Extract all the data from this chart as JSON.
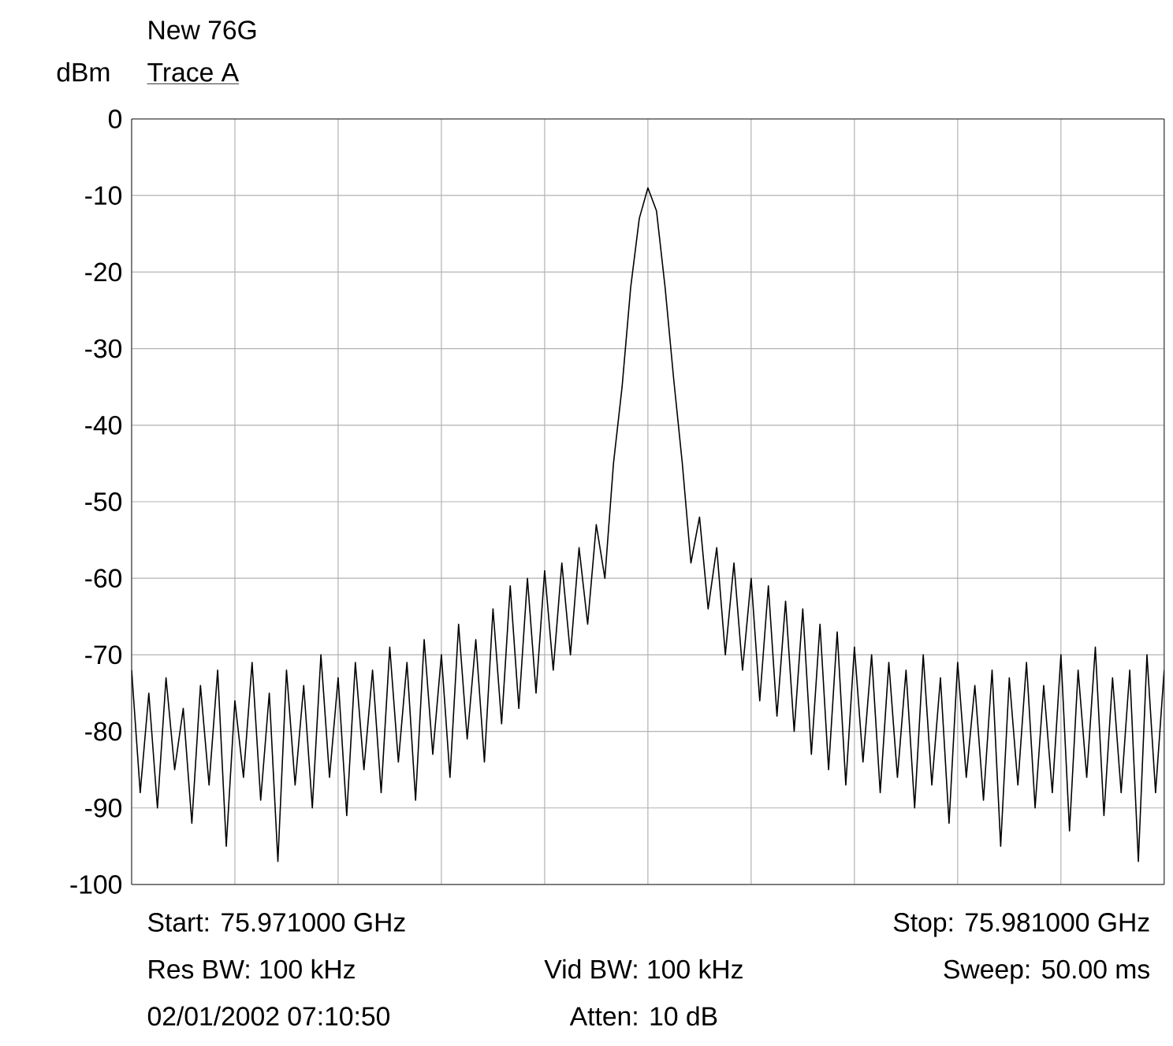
{
  "chart_data": {
    "type": "line",
    "title": "New 76G",
    "subtitle": "Trace A",
    "ylabel": "dBm",
    "categories": [
      null,
      null,
      null,
      null,
      null,
      null,
      null,
      null,
      null,
      null,
      null,
      null,
      null,
      null,
      null,
      null,
      null,
      null,
      null,
      null,
      null,
      null,
      null,
      null,
      null,
      null,
      null,
      null,
      null,
      null,
      null,
      null,
      null,
      null,
      null,
      null,
      null,
      null,
      null,
      null,
      null,
      null,
      null,
      null,
      null,
      null,
      null,
      null,
      null,
      null,
      null,
      null,
      null,
      null,
      null,
      null,
      null,
      null,
      null,
      null,
      null,
      null,
      null,
      null,
      null,
      null,
      null,
      null,
      null,
      null,
      null,
      null,
      null,
      null,
      null,
      null,
      null,
      null,
      null,
      null,
      null,
      null,
      null,
      null,
      null,
      null,
      null,
      null,
      null,
      null,
      null,
      null,
      null,
      null,
      null,
      null,
      null,
      null,
      null,
      null,
      null,
      null,
      null,
      null,
      null,
      null,
      null,
      null,
      null,
      null,
      null,
      null,
      null,
      null,
      null,
      null,
      null,
      null,
      null,
      null,
      null
    ],
    "series": [
      {
        "color": "#000000",
        "values": [
          -72,
          -88,
          -75,
          -90,
          -73,
          -85,
          -77,
          -92,
          -74,
          -87,
          -72,
          -95,
          -76,
          -86,
          -71,
          -89,
          -75,
          -97,
          -72,
          -87,
          -74,
          -90,
          -70,
          -86,
          -73,
          -91,
          -71,
          -85,
          -72,
          -88,
          -69,
          -84,
          -71,
          -89,
          -68,
          -83,
          -70,
          -86,
          -66,
          -81,
          -68,
          -84,
          -64,
          -79,
          -61,
          -77,
          -60,
          -75,
          -59,
          -72,
          -58,
          -70,
          -56,
          -66,
          -53,
          -60,
          -45,
          -35,
          -22,
          -13,
          -9,
          -12,
          -22,
          -34,
          -45,
          -58,
          -52,
          -64,
          -56,
          -70,
          -58,
          -72,
          -60,
          -76,
          -61,
          -78,
          -63,
          -80,
          -64,
          -83,
          -66,
          -85,
          -67,
          -87,
          -69,
          -84,
          -70,
          -88,
          -71,
          -86,
          -72,
          -90,
          -70,
          -87,
          -73,
          -92,
          -71,
          -86,
          -74,
          -89,
          -72,
          -95,
          -73,
          -87,
          -71,
          -90,
          -74,
          -88,
          -70,
          -93,
          -72,
          -86,
          -69,
          -91,
          -73,
          -88,
          -72,
          -97,
          -70,
          -88,
          -72
        ]
      }
    ],
    "ylim": [
      -100,
      0
    ],
    "yticks": [
      0,
      -10,
      -20,
      -30,
      -40,
      -50,
      -60,
      -70,
      -80,
      -90,
      -100
    ],
    "grid": true,
    "tick_labels": "y",
    "annotations": [
      "Start: 75.971000 GHz",
      "Stop: 75.981000 GHz",
      "Res BW: 100 kHz",
      "Vid BW: 100 kHz",
      "Sweep: 50.00 ms",
      "02/01/2002 07:10:50",
      "Atten: 10 dB"
    ]
  }
}
